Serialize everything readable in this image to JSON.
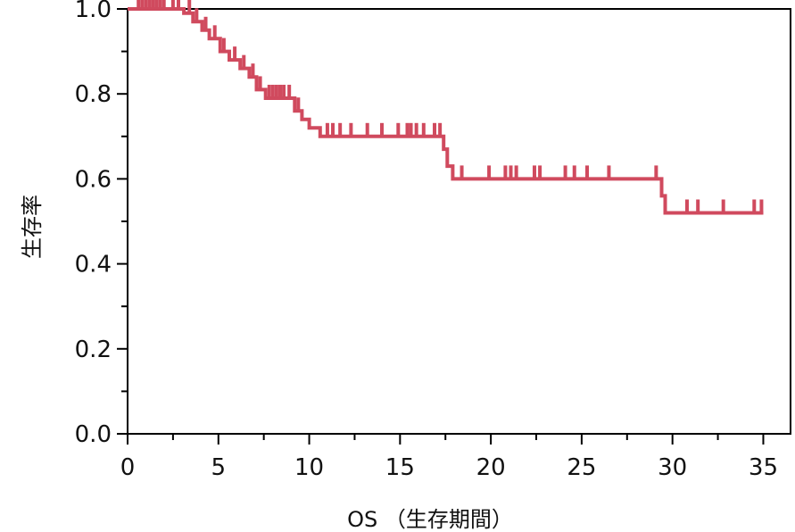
{
  "chart_data": {
    "type": "line",
    "subtype": "kaplan-meier",
    "title": "",
    "xlabel": "OS （生存期間）",
    "ylabel": "生存率",
    "xlim": [
      0,
      36.5
    ],
    "ylim": [
      0,
      1.0
    ],
    "x_ticks": [
      0,
      5,
      10,
      15,
      20,
      25,
      30,
      35
    ],
    "x_tick_labels": [
      "0",
      "5",
      "10",
      "15",
      "20",
      "25",
      "30",
      "35"
    ],
    "y_ticks": [
      0,
      0.2,
      0.4,
      0.6,
      0.8,
      1.0
    ],
    "y_tick_labels": [
      "0.0",
      "0.2",
      "0.4",
      "0.6",
      "0.8",
      "1.0"
    ],
    "grid": false,
    "colors": {
      "series": "#d04a5e",
      "axis": "#000000"
    },
    "series": [
      {
        "step_points": [
          [
            0,
            1.0
          ],
          [
            3.1,
            1.0
          ],
          [
            3.1,
            0.99
          ],
          [
            3.6,
            0.99
          ],
          [
            3.6,
            0.97
          ],
          [
            4.1,
            0.97
          ],
          [
            4.1,
            0.95
          ],
          [
            4.5,
            0.95
          ],
          [
            4.5,
            0.93
          ],
          [
            5.1,
            0.93
          ],
          [
            5.1,
            0.9
          ],
          [
            5.6,
            0.9
          ],
          [
            5.6,
            0.88
          ],
          [
            6.2,
            0.88
          ],
          [
            6.2,
            0.86
          ],
          [
            6.7,
            0.86
          ],
          [
            6.7,
            0.84
          ],
          [
            7.1,
            0.84
          ],
          [
            7.1,
            0.81
          ],
          [
            7.6,
            0.81
          ],
          [
            7.6,
            0.79
          ],
          [
            9.2,
            0.79
          ],
          [
            9.2,
            0.76
          ],
          [
            9.6,
            0.76
          ],
          [
            9.6,
            0.74
          ],
          [
            10.0,
            0.74
          ],
          [
            10.0,
            0.72
          ],
          [
            10.6,
            0.72
          ],
          [
            10.6,
            0.7
          ],
          [
            17.4,
            0.7
          ],
          [
            17.4,
            0.67
          ],
          [
            17.6,
            0.67
          ],
          [
            17.6,
            0.63
          ],
          [
            17.9,
            0.63
          ],
          [
            17.9,
            0.6
          ],
          [
            29.4,
            0.6
          ],
          [
            29.4,
            0.56
          ],
          [
            29.6,
            0.56
          ],
          [
            29.6,
            0.52
          ],
          [
            35.0,
            0.52
          ]
        ],
        "censored": [
          [
            0.6,
            1.0
          ],
          [
            0.8,
            1.0
          ],
          [
            1.0,
            1.0
          ],
          [
            1.2,
            1.0
          ],
          [
            1.4,
            1.0
          ],
          [
            1.6,
            1.0
          ],
          [
            1.8,
            1.0
          ],
          [
            2.0,
            1.0
          ],
          [
            2.5,
            1.0
          ],
          [
            2.8,
            1.0
          ],
          [
            3.4,
            0.99
          ],
          [
            3.8,
            0.97
          ],
          [
            4.3,
            0.95
          ],
          [
            4.8,
            0.93
          ],
          [
            5.3,
            0.9
          ],
          [
            5.9,
            0.88
          ],
          [
            6.4,
            0.86
          ],
          [
            6.9,
            0.84
          ],
          [
            7.3,
            0.81
          ],
          [
            7.8,
            0.79
          ],
          [
            8.0,
            0.79
          ],
          [
            8.2,
            0.79
          ],
          [
            8.4,
            0.79
          ],
          [
            8.6,
            0.79
          ],
          [
            8.9,
            0.79
          ],
          [
            9.4,
            0.76
          ],
          [
            11.0,
            0.7
          ],
          [
            11.3,
            0.7
          ],
          [
            11.7,
            0.7
          ],
          [
            12.3,
            0.7
          ],
          [
            13.2,
            0.7
          ],
          [
            14.0,
            0.7
          ],
          [
            14.9,
            0.7
          ],
          [
            15.4,
            0.7
          ],
          [
            15.6,
            0.7
          ],
          [
            15.9,
            0.7
          ],
          [
            16.3,
            0.7
          ],
          [
            16.9,
            0.7
          ],
          [
            17.2,
            0.7
          ],
          [
            18.4,
            0.6
          ],
          [
            19.9,
            0.6
          ],
          [
            20.8,
            0.6
          ],
          [
            21.1,
            0.6
          ],
          [
            21.4,
            0.6
          ],
          [
            22.4,
            0.6
          ],
          [
            22.7,
            0.6
          ],
          [
            24.1,
            0.6
          ],
          [
            24.6,
            0.6
          ],
          [
            25.3,
            0.6
          ],
          [
            26.5,
            0.6
          ],
          [
            29.1,
            0.6
          ],
          [
            30.8,
            0.52
          ],
          [
            31.4,
            0.52
          ],
          [
            32.8,
            0.52
          ],
          [
            34.5,
            0.52
          ],
          [
            34.9,
            0.52
          ]
        ]
      }
    ]
  }
}
